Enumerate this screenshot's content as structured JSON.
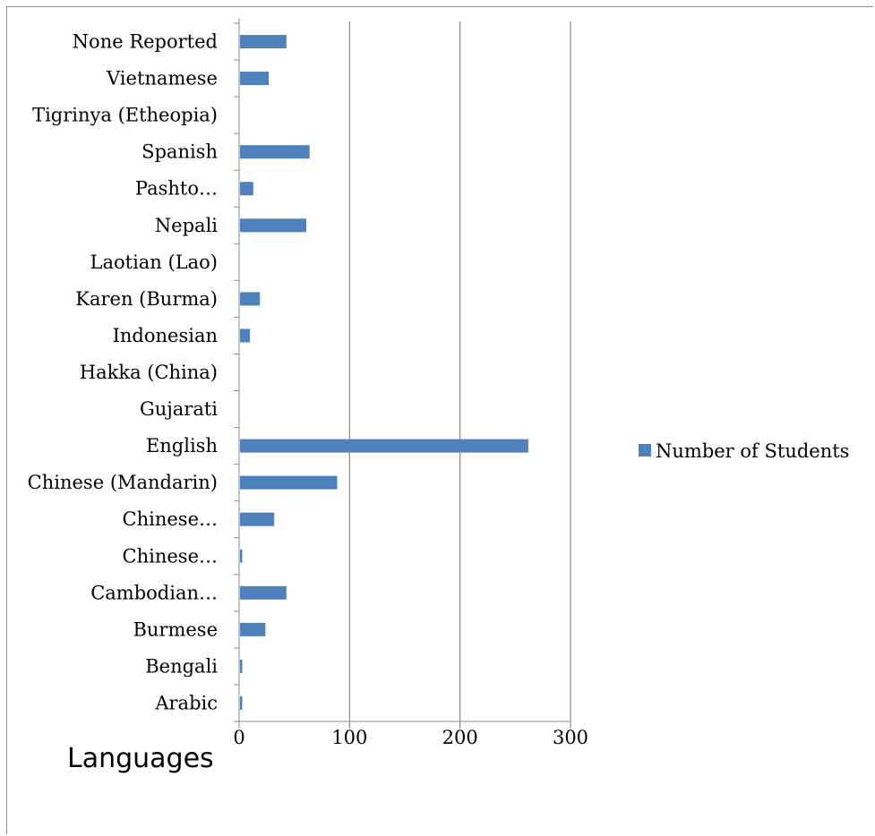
{
  "chart_data": {
    "type": "bar",
    "orientation": "horizontal",
    "categories": [
      "Arabic",
      "Bengali",
      "Burmese",
      "Cambodian…",
      "Chinese…",
      "Chinese…",
      "Chinese (Mandarin)",
      "English",
      "Gujarati",
      "Hakka (China)",
      "Indonesian",
      "Karen (Burma)",
      "Laotian (Lao)",
      "Nepali",
      "Pashto…",
      "Spanish",
      "Tigrinya (Etheopia)",
      "Vietnamese",
      "None Reported"
    ],
    "series": [
      {
        "name": "Number of Students",
        "color": "#4f81bd",
        "values": [
          2,
          2,
          23,
          42,
          2,
          31,
          88,
          261,
          0,
          0,
          9,
          18,
          0,
          60,
          12,
          63,
          0,
          26,
          42
        ]
      }
    ],
    "xlim": [
      0,
      300
    ],
    "xticks": [
      "0",
      "100",
      "200",
      "300"
    ],
    "xlabel": "Languages",
    "ylabel": "",
    "title": "",
    "grid": "vertical",
    "legend": {
      "position": "right",
      "entries": [
        "Number of Students"
      ]
    }
  }
}
